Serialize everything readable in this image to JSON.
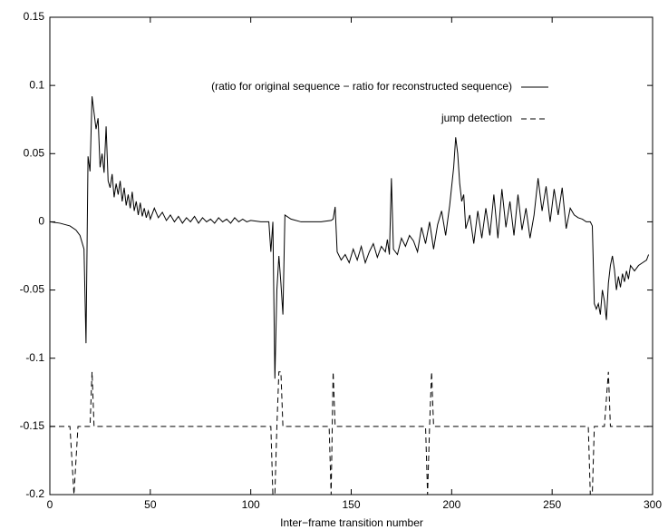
{
  "chart_data": {
    "type": "line",
    "xlabel": "Inter−frame transition number",
    "xlim": [
      0,
      300
    ],
    "xticks": [
      0,
      50,
      100,
      150,
      200,
      250,
      300
    ],
    "ylim": [
      -0.2,
      0.15
    ],
    "yticks": [
      -0.2,
      -0.15,
      -0.1,
      -0.05,
      0,
      0.05,
      0.1,
      0.15
    ],
    "grid": false,
    "legend": "top-right",
    "series": [
      {
        "name": "(ratio for original sequence − ratio for reconstructed sequence)",
        "color": "#000000",
        "dash": false,
        "x": [
          0,
          5,
          10,
          13,
          15,
          17,
          18,
          19,
          20,
          21,
          22,
          23,
          24,
          25,
          26,
          27,
          28,
          29,
          30,
          31,
          32,
          33,
          34,
          35,
          36,
          37,
          38,
          39,
          40,
          41,
          42,
          43,
          44,
          45,
          46,
          47,
          48,
          49,
          50,
          52,
          54,
          56,
          58,
          60,
          62,
          64,
          66,
          68,
          70,
          72,
          74,
          76,
          78,
          80,
          82,
          84,
          86,
          88,
          90,
          92,
          94,
          96,
          98,
          100,
          105,
          109,
          110,
          111,
          112,
          113,
          114,
          115,
          116,
          117,
          120,
          125,
          130,
          135,
          140,
          141,
          142,
          143,
          145,
          147,
          149,
          151,
          153,
          155,
          157,
          159,
          161,
          163,
          165,
          167,
          168,
          169,
          170,
          171,
          173,
          175,
          177,
          179,
          181,
          183,
          185,
          187,
          189,
          191,
          193,
          195,
          197,
          199,
          201,
          202,
          203,
          204,
          205,
          206,
          207,
          209,
          211,
          213,
          215,
          217,
          219,
          221,
          223,
          225,
          227,
          229,
          231,
          233,
          235,
          237,
          239,
          241,
          243,
          245,
          247,
          249,
          251,
          253,
          255,
          257,
          259,
          261,
          263,
          265,
          267,
          269,
          270,
          271,
          272,
          273,
          274,
          275,
          276,
          277,
          278,
          279,
          280,
          281,
          282,
          283,
          284,
          285,
          286,
          287,
          288,
          289,
          291,
          293,
          295,
          297,
          298
        ],
        "values": [
          0,
          -0.001,
          -0.003,
          -0.006,
          -0.01,
          -0.02,
          -0.089,
          0.048,
          0.037,
          0.092,
          0.08,
          0.068,
          0.076,
          0.04,
          0.05,
          0.036,
          0.07,
          0.03,
          0.025,
          0.035,
          0.018,
          0.028,
          0.02,
          0.03,
          0.015,
          0.025,
          0.012,
          0.02,
          0.01,
          0.022,
          0.008,
          0.015,
          0.005,
          0.014,
          0.004,
          0.01,
          0.003,
          0.008,
          0.002,
          0.01,
          0.003,
          0.007,
          0.001,
          0.005,
          0,
          0.004,
          -0.001,
          0.003,
          0,
          0.004,
          -0.001,
          0.003,
          0,
          0.002,
          -0.001,
          0.003,
          0,
          0.002,
          -0.001,
          0.003,
          0,
          0.002,
          0,
          0.001,
          0,
          0,
          -0.022,
          0,
          -0.115,
          -0.05,
          -0.025,
          -0.045,
          -0.068,
          0.005,
          0.002,
          0,
          0,
          0,
          0.001,
          0.002,
          0.011,
          -0.022,
          -0.028,
          -0.024,
          -0.03,
          -0.02,
          -0.028,
          -0.018,
          -0.03,
          -0.022,
          -0.016,
          -0.026,
          -0.018,
          -0.022,
          -0.013,
          -0.024,
          0.032,
          -0.02,
          -0.024,
          -0.012,
          -0.018,
          -0.01,
          -0.014,
          -0.022,
          -0.004,
          -0.016,
          0,
          -0.02,
          -0.002,
          0.008,
          -0.01,
          0.012,
          0.04,
          0.062,
          0.05,
          0.028,
          0.015,
          0.02,
          -0.005,
          0.005,
          -0.016,
          0.008,
          -0.012,
          0.01,
          -0.01,
          0.02,
          -0.012,
          0.024,
          -0.004,
          0.015,
          -0.01,
          0.02,
          -0.006,
          0.01,
          -0.012,
          0.005,
          0.032,
          0.008,
          0.026,
          0,
          0.024,
          0.005,
          0.025,
          -0.005,
          0.01,
          0.005,
          0.003,
          0.002,
          0,
          0,
          -0.003,
          -0.06,
          -0.064,
          -0.06,
          -0.068,
          -0.05,
          -0.058,
          -0.072,
          -0.045,
          -0.032,
          -0.025,
          -0.035,
          -0.05,
          -0.04,
          -0.048,
          -0.038,
          -0.044,
          -0.036,
          -0.042,
          -0.032,
          -0.036,
          -0.032,
          -0.03,
          -0.028,
          -0.024
        ]
      },
      {
        "name": "jump detection",
        "color": "#000000",
        "dash": true,
        "x": [
          0,
          10,
          12,
          14,
          20,
          21,
          22,
          110,
          111,
          112,
          113,
          114,
          115,
          116,
          139,
          140,
          141,
          142,
          187,
          188,
          189,
          190,
          191,
          268,
          269,
          270,
          271,
          276,
          277,
          278,
          279,
          298
        ],
        "values": [
          -0.15,
          -0.15,
          -0.2,
          -0.15,
          -0.15,
          -0.11,
          -0.15,
          -0.15,
          -0.2,
          -0.2,
          -0.15,
          -0.11,
          -0.11,
          -0.15,
          -0.15,
          -0.2,
          -0.11,
          -0.15,
          -0.15,
          -0.2,
          -0.15,
          -0.11,
          -0.15,
          -0.15,
          -0.2,
          -0.2,
          -0.15,
          -0.15,
          -0.13,
          -0.11,
          -0.15,
          -0.15
        ]
      }
    ]
  }
}
